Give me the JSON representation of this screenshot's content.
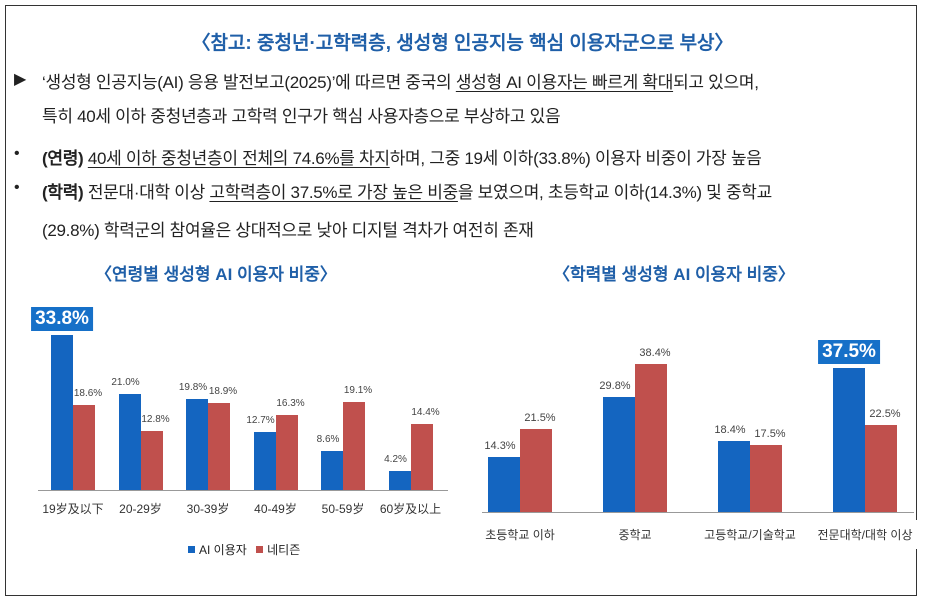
{
  "title": "〈참고: 중청년·고학력층, 생성형 인공지능 핵심 이용자군으로 부상〉",
  "bullets": [
    {
      "marker": "▶",
      "lines": [
        [
          {
            "t": "‘생성형 인공지능(AI) 응용 발전보고(2025)’에 따르면 중국의 "
          },
          {
            "t": "생성형 AI 이용자는 빠르게 확대",
            "u": true
          },
          {
            "t": "되고 있으며,"
          }
        ],
        [
          {
            "t": "특히 40세 이하 중청년층과 고학력 인구가 핵심 사용자층으로 부상하고 있음"
          }
        ]
      ]
    },
    {
      "marker": "•",
      "lines": [
        [
          {
            "t": "(연령) ",
            "b": true
          },
          {
            "t": "40세 이하 중청년층이 전체의 74.6%를 차지",
            "u": true
          },
          {
            "t": "하며, 그중 19세 이하(33.8%) 이용자 비중이 가장 높음"
          }
        ]
      ]
    },
    {
      "marker": "•",
      "lines": [
        [
          {
            "t": "(학력) ",
            "b": true
          },
          {
            "t": "전문대·대학 이상 "
          },
          {
            "t": "고학력층이 37.5%로 가장 높은 비중",
            "u": true
          },
          {
            "t": "을 보였으며, 초등학교 이하(14.3%) 및 중학교"
          }
        ],
        [
          {
            "t": "(29.8%) 학력군의 참여율은 상대적으로 낮아 디지털 격차가 여전히 존재"
          }
        ]
      ]
    }
  ],
  "colors": {
    "ai_users": "#1465c0",
    "netizens": "#c0504d",
    "title": "#1f5fa8"
  },
  "chart_data": [
    {
      "type": "bar",
      "title": "〈연령별 생성형 AI 이용자 비중〉",
      "categories": [
        "19岁及以下",
        "20-29岁",
        "30-39岁",
        "40-49岁",
        "50-59岁",
        "60岁及以上"
      ],
      "series": [
        {
          "name": "AI 이용자",
          "values": [
            33.8,
            21.0,
            19.8,
            12.7,
            8.6,
            4.2
          ],
          "labels": [
            "33.8%",
            "21.0%",
            "19.8%",
            "12.7%",
            "8.6%",
            "4.2%"
          ]
        },
        {
          "name": "네티즌",
          "values": [
            18.6,
            12.8,
            18.9,
            16.3,
            19.1,
            14.4
          ],
          "labels": [
            "18.6%",
            "12.8%",
            "18.9%",
            "16.3%",
            "19.1%",
            "14.4%"
          ]
        }
      ],
      "highlight_index": 0,
      "legend": "bottom"
    },
    {
      "type": "bar",
      "title": "〈학력별 생성형 AI 이용자 비중〉",
      "categories": [
        "초등학교 이하",
        "중학교",
        "고등학교/기술학교",
        "전문대학/대학 이상"
      ],
      "series": [
        {
          "name": "AI 이용자",
          "values": [
            14.3,
            29.8,
            18.4,
            37.5
          ],
          "labels": [
            "14.3%",
            "29.8%",
            "18.4%",
            "37.5%"
          ]
        },
        {
          "name": "네티즌",
          "values": [
            21.5,
            38.4,
            17.5,
            22.5
          ],
          "labels": [
            "21.5%",
            "38.4%",
            "17.5%",
            "22.5%"
          ]
        }
      ],
      "highlight_index": 3,
      "legend": "none"
    }
  ]
}
